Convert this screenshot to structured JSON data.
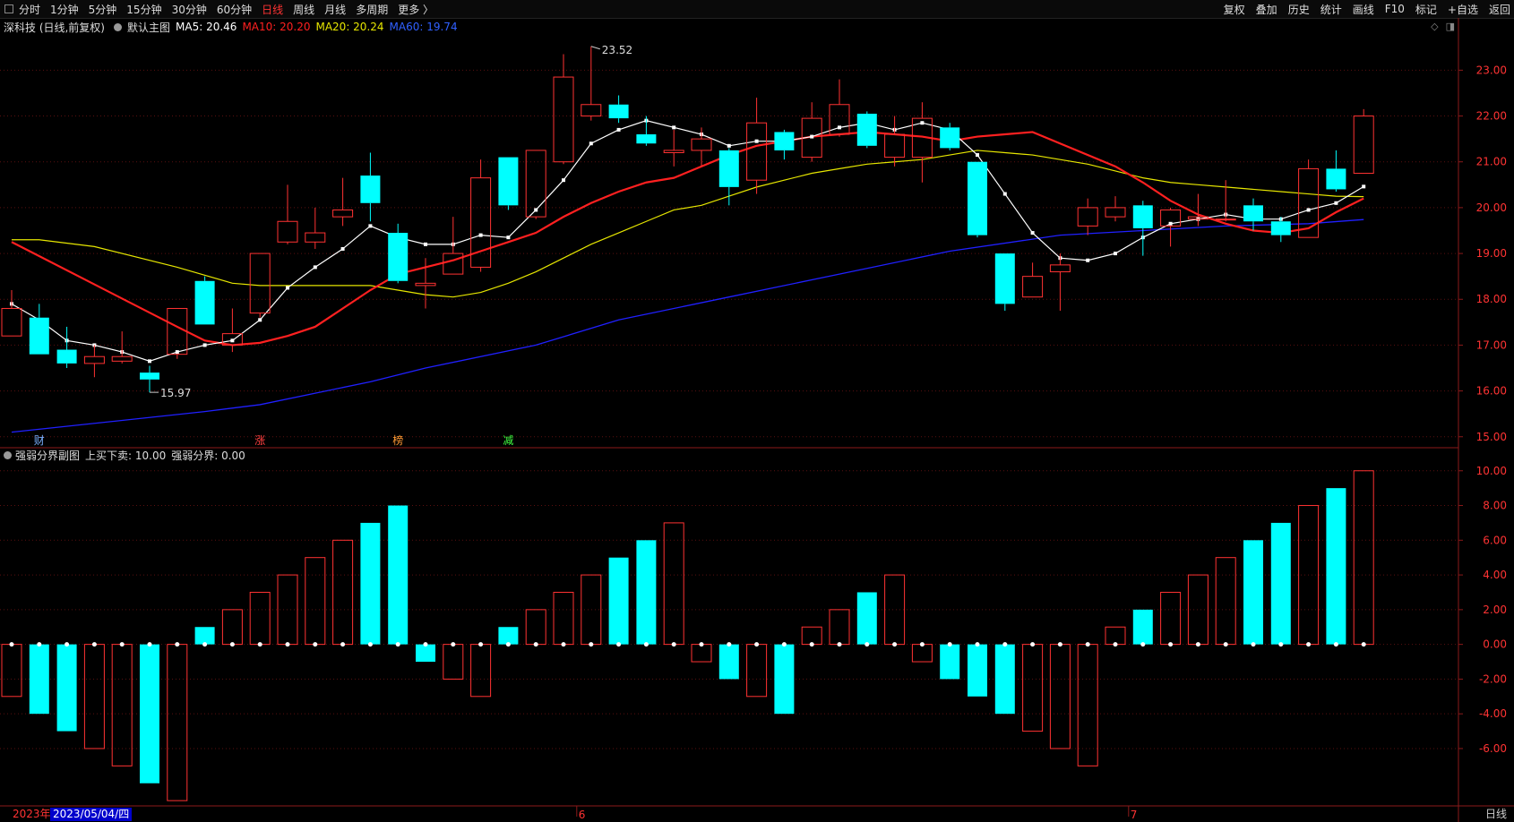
{
  "tabs": [
    "分时",
    "1分钟",
    "5分钟",
    "15分钟",
    "30分钟",
    "60分钟",
    "日线",
    "周线",
    "月线",
    "多周期",
    "更多 〉"
  ],
  "active_tab": "日线",
  "right_menu": [
    "复权",
    "叠加",
    "历史",
    "统计",
    "画线",
    "F10",
    "标记",
    "+自选",
    "返回"
  ],
  "info": {
    "title": "深科技 (日线,前复权)",
    "main_label": "默认主图",
    "ma5": "MA5: 20.46",
    "ma10": "MA10: 20.20",
    "ma20": "MA20: 20.24",
    "ma60": "MA60: 19.74"
  },
  "sub_info": {
    "title": "强弱分界副图",
    "buy_sell": "上买下卖: 10.00",
    "boundary": "强弱分界: 0.00"
  },
  "footer": {
    "year": "2023年",
    "date": "2023/05/04/四",
    "period": "日线"
  },
  "colors": {
    "up": "#ff3232",
    "down": "#00ffff",
    "ma5": "#ffffff",
    "ma10": "#ff2020",
    "ma20": "#e6e600",
    "ma60": "#2020ff"
  },
  "event_markers": [
    {
      "index": 1,
      "label": "财",
      "color": "#7ab0ff"
    },
    {
      "index": 9,
      "label": "涨",
      "color": "#ff4040"
    },
    {
      "index": 14,
      "label": "榜",
      "color": "#ff9933"
    },
    {
      "index": 18,
      "label": "减",
      "color": "#40ff40"
    }
  ],
  "month_markers": [
    {
      "index": 21,
      "label": "6"
    },
    {
      "index": 41,
      "label": "7"
    }
  ],
  "chart_data": [
    {
      "type": "candlestick",
      "y_ticks": [
        "23.00",
        "22.00",
        "21.00",
        "20.00",
        "19.00",
        "18.00",
        "17.00",
        "16.00",
        "15.00"
      ],
      "ylim": [
        14.8,
        23.75
      ],
      "annotations": [
        {
          "index": 21,
          "text": "23.52"
        },
        {
          "index": 5,
          "text": "15.97"
        }
      ],
      "candles": [
        {
          "o": 17.2,
          "c": 17.8,
          "h": 18.2,
          "l": 17.2
        },
        {
          "o": 17.6,
          "c": 16.8,
          "h": 17.9,
          "l": 16.8
        },
        {
          "o": 16.9,
          "c": 16.6,
          "h": 17.4,
          "l": 16.5
        },
        {
          "o": 16.6,
          "c": 16.75,
          "h": 17.0,
          "l": 16.3
        },
        {
          "o": 16.65,
          "c": 16.75,
          "h": 17.3,
          "l": 16.6
        },
        {
          "o": 16.4,
          "c": 16.25,
          "h": 16.55,
          "l": 15.97
        },
        {
          "o": 16.8,
          "c": 17.8,
          "h": 17.8,
          "l": 16.7
        },
        {
          "o": 18.4,
          "c": 17.45,
          "h": 18.5,
          "l": 17.45
        },
        {
          "o": 17.0,
          "c": 17.25,
          "h": 17.8,
          "l": 16.85
        },
        {
          "o": 17.7,
          "c": 19.0,
          "h": 19.0,
          "l": 17.6
        },
        {
          "o": 19.25,
          "c": 19.7,
          "h": 20.5,
          "l": 19.2
        },
        {
          "o": 19.25,
          "c": 19.45,
          "h": 20.0,
          "l": 19.1
        },
        {
          "o": 19.8,
          "c": 19.95,
          "h": 20.65,
          "l": 19.6
        },
        {
          "o": 20.7,
          "c": 20.1,
          "h": 21.2,
          "l": 19.7
        },
        {
          "o": 19.45,
          "c": 18.4,
          "h": 19.65,
          "l": 18.35
        },
        {
          "o": 18.3,
          "c": 18.35,
          "h": 18.9,
          "l": 17.8
        },
        {
          "o": 18.55,
          "c": 19.0,
          "h": 19.8,
          "l": 18.55
        },
        {
          "o": 18.7,
          "c": 20.65,
          "h": 21.05,
          "l": 18.6
        },
        {
          "o": 21.1,
          "c": 20.05,
          "h": 21.1,
          "l": 19.95
        },
        {
          "o": 19.8,
          "c": 21.25,
          "h": 21.25,
          "l": 19.75
        },
        {
          "o": 21.0,
          "c": 22.85,
          "h": 23.35,
          "l": 20.95
        },
        {
          "o": 22.0,
          "c": 22.25,
          "h": 23.52,
          "l": 21.9
        },
        {
          "o": 22.25,
          "c": 21.95,
          "h": 22.45,
          "l": 21.85
        },
        {
          "o": 21.6,
          "c": 21.4,
          "h": 22.0,
          "l": 21.35
        },
        {
          "o": 21.2,
          "c": 21.25,
          "h": 21.7,
          "l": 20.9
        },
        {
          "o": 21.25,
          "c": 21.5,
          "h": 21.75,
          "l": 20.9
        },
        {
          "o": 21.25,
          "c": 20.45,
          "h": 21.3,
          "l": 20.05
        },
        {
          "o": 20.6,
          "c": 21.85,
          "h": 22.4,
          "l": 20.3
        },
        {
          "o": 21.65,
          "c": 21.25,
          "h": 21.7,
          "l": 21.05
        },
        {
          "o": 21.1,
          "c": 21.95,
          "h": 22.3,
          "l": 21.0
        },
        {
          "o": 21.6,
          "c": 22.25,
          "h": 22.8,
          "l": 21.55
        },
        {
          "o": 22.05,
          "c": 21.35,
          "h": 22.1,
          "l": 21.3
        },
        {
          "o": 21.1,
          "c": 21.6,
          "h": 22.0,
          "l": 20.9
        },
        {
          "o": 21.1,
          "c": 21.95,
          "h": 22.3,
          "l": 20.55
        },
        {
          "o": 21.75,
          "c": 21.3,
          "h": 21.85,
          "l": 21.25
        },
        {
          "o": 21.0,
          "c": 19.4,
          "h": 21.0,
          "l": 19.35
        },
        {
          "o": 19.0,
          "c": 17.9,
          "h": 19.0,
          "l": 17.75
        },
        {
          "o": 18.05,
          "c": 18.5,
          "h": 18.8,
          "l": 18.05
        },
        {
          "o": 18.6,
          "c": 18.75,
          "h": 19.0,
          "l": 17.75
        },
        {
          "o": 19.6,
          "c": 20.0,
          "h": 20.2,
          "l": 19.4
        },
        {
          "o": 19.8,
          "c": 20.0,
          "h": 20.25,
          "l": 19.7
        },
        {
          "o": 20.05,
          "c": 19.55,
          "h": 20.15,
          "l": 18.95
        },
        {
          "o": 19.6,
          "c": 19.95,
          "h": 20.0,
          "l": 19.15
        },
        {
          "o": 19.75,
          "c": 19.8,
          "h": 20.3,
          "l": 19.6
        },
        {
          "o": 19.75,
          "c": 19.75,
          "h": 20.6,
          "l": 19.7
        },
        {
          "o": 20.05,
          "c": 19.7,
          "h": 20.2,
          "l": 19.5
        },
        {
          "o": 19.7,
          "c": 19.4,
          "h": 19.8,
          "l": 19.25
        },
        {
          "o": 19.35,
          "c": 20.85,
          "h": 21.05,
          "l": 19.35
        },
        {
          "o": 20.85,
          "c": 20.4,
          "h": 21.25,
          "l": 20.35
        },
        {
          "o": 20.75,
          "c": 22.0,
          "h": 22.15,
          "l": 20.75
        }
      ],
      "ma5": [
        17.9,
        17.55,
        17.1,
        17.0,
        16.85,
        16.65,
        16.85,
        17.0,
        17.1,
        17.55,
        18.25,
        18.7,
        19.1,
        19.6,
        19.35,
        19.2,
        19.2,
        19.4,
        19.35,
        19.95,
        20.6,
        21.4,
        21.7,
        21.9,
        21.75,
        21.6,
        21.35,
        21.45,
        21.45,
        21.55,
        21.75,
        21.85,
        21.7,
        21.85,
        21.7,
        21.15,
        20.3,
        19.45,
        18.9,
        18.85,
        19.0,
        19.35,
        19.65,
        19.75,
        19.85,
        19.75,
        19.75,
        19.95,
        20.1,
        20.46
      ],
      "ma10": [
        19.25,
        null,
        null,
        null,
        null,
        null,
        17.4,
        17.1,
        17.0,
        17.05,
        17.2,
        17.4,
        17.8,
        18.2,
        18.55,
        18.7,
        18.85,
        19.05,
        19.25,
        19.45,
        19.8,
        20.1,
        20.35,
        20.55,
        20.65,
        20.9,
        21.15,
        21.35,
        21.45,
        21.55,
        21.6,
        21.65,
        21.6,
        21.55,
        21.45,
        21.55,
        21.6,
        21.65,
        null,
        null,
        20.9,
        20.55,
        20.15,
        19.85,
        19.65,
        19.5,
        19.45,
        19.55,
        19.9,
        20.2
      ],
      "ma20": [
        19.3,
        19.3,
        null,
        19.15,
        null,
        null,
        18.7,
        null,
        18.35,
        18.3,
        18.3,
        18.3,
        18.3,
        18.3,
        18.2,
        18.1,
        18.05,
        18.15,
        18.35,
        18.6,
        18.9,
        19.2,
        19.45,
        19.7,
        19.95,
        20.05,
        20.25,
        20.45,
        20.6,
        20.75,
        20.85,
        20.95,
        21.0,
        21.05,
        21.15,
        21.25,
        21.2,
        21.15,
        21.05,
        20.95,
        20.8,
        20.65,
        20.55,
        20.5,
        20.45,
        20.4,
        20.35,
        20.3,
        20.25,
        20.24
      ],
      "ma60": [
        15.1,
        null,
        null,
        null,
        null,
        null,
        null,
        15.55,
        null,
        15.7,
        null,
        null,
        null,
        16.2,
        null,
        16.5,
        null,
        null,
        null,
        17.0,
        null,
        null,
        17.55,
        null,
        null,
        null,
        18.05,
        null,
        null,
        null,
        18.55,
        null,
        null,
        null,
        19.05,
        null,
        null,
        null,
        19.4,
        null,
        null,
        19.5,
        null,
        null,
        19.6,
        null,
        null,
        19.65,
        null,
        19.74
      ]
    },
    {
      "type": "bar",
      "y_ticks": [
        "10.00",
        "8.00",
        "6.00",
        "4.00",
        "2.00",
        "0.00",
        "-2.00",
        "-4.00",
        "-6.00"
      ],
      "ylim": [
        -9.2,
        10.4
      ],
      "values": [
        -3,
        -4,
        -5,
        -6,
        -7,
        -8,
        -9,
        1,
        2,
        3,
        4,
        5,
        6,
        7,
        8,
        -1,
        -2,
        -3,
        1,
        2,
        3,
        4,
        5,
        6,
        7,
        -1,
        -2,
        -3,
        -4,
        1,
        2,
        3,
        4,
        -1,
        -2,
        -3,
        -4,
        -5,
        -6,
        -7,
        1,
        2,
        3,
        4,
        5,
        6,
        7,
        8,
        9,
        10
      ],
      "fill": [
        0,
        1,
        1,
        0,
        0,
        1,
        0,
        1,
        0,
        0,
        0,
        0,
        0,
        1,
        1,
        1,
        0,
        0,
        1,
        0,
        0,
        0,
        1,
        1,
        0,
        0,
        1,
        0,
        1,
        0,
        0,
        1,
        0,
        0,
        1,
        1,
        1,
        0,
        0,
        0,
        0,
        1,
        0,
        0,
        0,
        1,
        1,
        0,
        1,
        0
      ]
    }
  ]
}
